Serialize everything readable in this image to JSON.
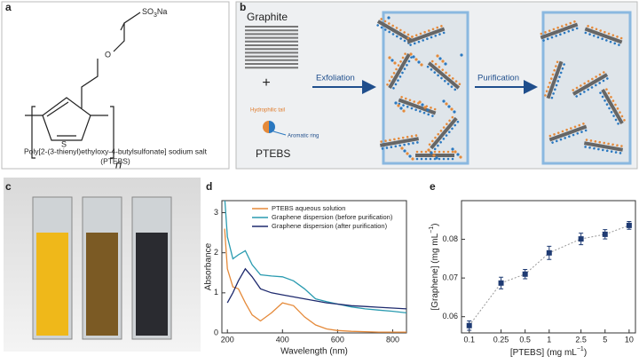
{
  "panel_labels": [
    "a",
    "b",
    "c",
    "d",
    "e"
  ],
  "structure": {
    "group": [
      "SO",
      "3",
      "Na"
    ],
    "oxygen": "O",
    "sulfur": "S",
    "repeat": "n",
    "caption": [
      "Poly[2-(3-thienyl)ethyloxy-4-butylsulfonate] sodium salt",
      "(PTEBS)"
    ]
  },
  "scheme": {
    "graphite": "Graphite",
    "plus": "+",
    "tail": "Hydrophilic tail",
    "ring": "Aromatic ring",
    "ptebs": "PTEBS",
    "step1": "Exfoliation",
    "step2": "Purification"
  },
  "chart_data": [
    {
      "type": "line",
      "xlabel": "Wavelength (nm)",
      "ylabel": "Absorbance",
      "x": [
        190,
        200,
        220,
        240,
        265,
        290,
        320,
        360,
        400,
        440,
        480,
        520,
        560,
        600,
        650,
        700,
        750,
        800,
        850
      ],
      "series": [
        {
          "name": "PTEBS aqueous solution",
          "color": "#e58a3a",
          "values": [
            2.6,
            1.6,
            1.15,
            1.1,
            0.75,
            0.45,
            0.3,
            0.5,
            0.75,
            0.68,
            0.4,
            0.2,
            0.1,
            0.06,
            0.04,
            0.03,
            0.02,
            0.02,
            0.02
          ]
        },
        {
          "name": "Graphene dispersion (before purification)",
          "color": "#2a9bb0",
          "values": [
            3.4,
            2.4,
            1.85,
            1.95,
            2.05,
            1.7,
            1.45,
            1.42,
            1.4,
            1.3,
            1.1,
            0.85,
            0.78,
            0.72,
            0.65,
            0.6,
            0.57,
            0.54,
            0.5
          ]
        },
        {
          "name": "Graphene dispersion (after purification)",
          "color": "#1e2a6e",
          "values": [
            null,
            0.75,
            1.0,
            1.3,
            1.6,
            1.4,
            1.1,
            1.0,
            0.95,
            0.9,
            0.85,
            0.8,
            0.75,
            0.72,
            0.68,
            0.66,
            0.64,
            0.62,
            0.6
          ]
        }
      ],
      "xlim": [
        180,
        850
      ],
      "ylim": [
        0,
        3.3
      ],
      "xticks": [
        200,
        400,
        600,
        800
      ],
      "yticks": [
        0,
        1,
        2,
        3
      ],
      "legend": "upper right"
    },
    {
      "type": "scatter",
      "xlabel": [
        "[PTEBS] (mg mL",
        "−1",
        ")"
      ],
      "ylabel": [
        "[Graphene] (mg mL",
        "−1",
        ")"
      ],
      "x": [
        0.1,
        0.25,
        0.5,
        1,
        2.5,
        5,
        10
      ],
      "values": [
        0.0577,
        0.0687,
        0.071,
        0.0765,
        0.0801,
        0.0813,
        0.0836
      ],
      "errors": [
        0.0012,
        0.0015,
        0.0012,
        0.0017,
        0.0015,
        0.0012,
        0.001
      ],
      "color": "#1f3b73",
      "xlim": [
        0.08,
        12
      ],
      "ylim": [
        0.0558,
        0.09
      ],
      "xticks": [
        0.1,
        0.25,
        0.5,
        1,
        2.5,
        5,
        10
      ],
      "yticks": [
        0.06,
        0.07,
        0.08
      ],
      "xscale": "log"
    }
  ]
}
